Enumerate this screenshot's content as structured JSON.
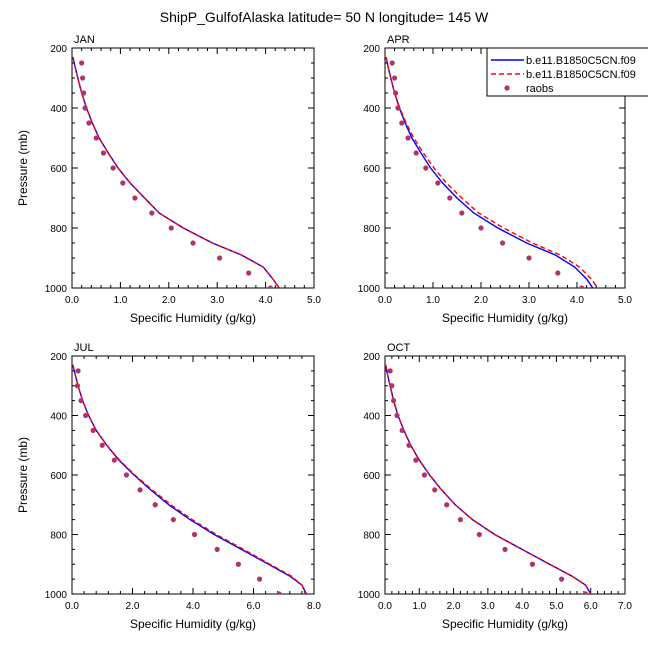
{
  "title": "ShipP_GulfofAlaska  latitude= 50 N longitude= 145 W",
  "legend": {
    "position": "top-right of APR panel",
    "entries": [
      {
        "label": "b.e11.B1850C5CN.f09",
        "color": "#0000ff",
        "style": "solid"
      },
      {
        "label": "b.e11.B1850C5CN.f09",
        "color": "#ff0000",
        "style": "dashed"
      },
      {
        "label": "raobs",
        "color": "#b0336a",
        "style": "marker"
      }
    ]
  },
  "chart_data": [
    {
      "type": "line",
      "panel": "JAN",
      "xlabel": "Specific Humidity (g/kg)",
      "ylabel": "Pressure (mb)",
      "xlim": [
        0,
        5
      ],
      "ylim": [
        1000,
        200
      ],
      "y_reversed": true,
      "xticks": [
        "0.0",
        "1.0",
        "2.0",
        "3.0",
        "4.0",
        "5.0"
      ],
      "yticks": [
        "200",
        "400",
        "600",
        "800",
        "1000"
      ],
      "series": [
        {
          "name": "b.e11.B1850C5CN.f09",
          "color": "#0000ff",
          "dash": false,
          "x": [
            0.02,
            0.06,
            0.12,
            0.2,
            0.3,
            0.42,
            0.56,
            0.75,
            0.95,
            1.2,
            1.5,
            1.8,
            2.3,
            2.9,
            3.5,
            3.95,
            4.15,
            4.28
          ],
          "y": [
            230,
            260,
            300,
            350,
            400,
            450,
            500,
            550,
            600,
            650,
            700,
            750,
            800,
            850,
            890,
            930,
            970,
            1000
          ]
        },
        {
          "name": "b.e11.B1850C5CN.f09",
          "color": "#ff0000",
          "dash": true,
          "x": [
            0.02,
            0.06,
            0.12,
            0.2,
            0.3,
            0.42,
            0.56,
            0.75,
            0.95,
            1.2,
            1.5,
            1.8,
            2.3,
            2.9,
            3.5,
            3.95,
            4.15,
            4.28
          ],
          "y": [
            230,
            260,
            300,
            350,
            400,
            450,
            500,
            550,
            600,
            650,
            700,
            750,
            800,
            850,
            890,
            930,
            970,
            1000
          ]
        },
        {
          "name": "raobs",
          "color": "#b0336a",
          "marker": true,
          "x": [
            0.2,
            0.22,
            0.24,
            0.27,
            0.35,
            0.5,
            0.65,
            0.85,
            1.05,
            1.3,
            1.65,
            2.05,
            2.5,
            3.05,
            3.65,
            4.1
          ],
          "y": [
            250,
            300,
            350,
            400,
            450,
            500,
            550,
            600,
            650,
            700,
            750,
            800,
            850,
            900,
            950,
            1000
          ]
        }
      ]
    },
    {
      "type": "line",
      "panel": "APR",
      "xlabel": "Specific Humidity (g/kg)",
      "ylabel": "",
      "xlim": [
        0,
        5
      ],
      "ylim": [
        1000,
        200
      ],
      "y_reversed": true,
      "xticks": [
        "0.0",
        "1.0",
        "2.0",
        "3.0",
        "4.0",
        "5.0"
      ],
      "yticks": [
        "200",
        "400",
        "600",
        "800",
        "1000"
      ],
      "series": [
        {
          "name": "b.e11.B1850C5CN.f09",
          "color": "#0000ff",
          "dash": false,
          "x": [
            0.02,
            0.06,
            0.12,
            0.2,
            0.3,
            0.42,
            0.56,
            0.75,
            0.95,
            1.2,
            1.5,
            1.85,
            2.35,
            2.95,
            3.55,
            3.95,
            4.2,
            4.33
          ],
          "y": [
            230,
            260,
            300,
            350,
            400,
            450,
            500,
            550,
            600,
            650,
            700,
            750,
            800,
            850,
            890,
            930,
            970,
            1000
          ]
        },
        {
          "name": "b.e11.B1850C5CN.f09",
          "color": "#ff0000",
          "dash": true,
          "x": [
            0.02,
            0.06,
            0.12,
            0.2,
            0.31,
            0.44,
            0.6,
            0.8,
            1.02,
            1.28,
            1.6,
            1.95,
            2.47,
            3.07,
            3.65,
            4.05,
            4.3,
            4.43
          ],
          "y": [
            230,
            260,
            300,
            350,
            400,
            450,
            500,
            550,
            600,
            650,
            700,
            750,
            800,
            850,
            890,
            930,
            970,
            1000
          ]
        },
        {
          "name": "raobs",
          "color": "#b0336a",
          "marker": true,
          "x": [
            0.15,
            0.2,
            0.22,
            0.27,
            0.35,
            0.48,
            0.65,
            0.85,
            1.1,
            1.35,
            1.6,
            2.0,
            2.45,
            3.0,
            3.6,
            4.1
          ],
          "y": [
            250,
            300,
            350,
            400,
            450,
            500,
            550,
            600,
            650,
            700,
            750,
            800,
            850,
            900,
            950,
            1000
          ]
        }
      ]
    },
    {
      "type": "line",
      "panel": "JUL",
      "xlabel": "Specific Humidity (g/kg)",
      "ylabel": "Pressure (mb)",
      "xlim": [
        0,
        8
      ],
      "ylim": [
        1000,
        200
      ],
      "y_reversed": true,
      "xticks": [
        "0.0",
        "2.0",
        "4.0",
        "6.0",
        "8.0"
      ],
      "yticks": [
        "200",
        "400",
        "600",
        "800",
        "1000"
      ],
      "series": [
        {
          "name": "b.e11.B1850C5CN.f09",
          "color": "#0000ff",
          "dash": false,
          "x": [
            0.03,
            0.1,
            0.2,
            0.35,
            0.55,
            0.8,
            1.15,
            1.55,
            2.05,
            2.6,
            3.2,
            3.9,
            4.7,
            5.6,
            6.5,
            7.2,
            7.6,
            7.75
          ],
          "y": [
            230,
            260,
            300,
            350,
            400,
            450,
            500,
            550,
            600,
            650,
            700,
            750,
            800,
            850,
            900,
            940,
            970,
            1000
          ]
        },
        {
          "name": "b.e11.B1850C5CN.f09",
          "color": "#ff0000",
          "dash": true,
          "x": [
            0.03,
            0.1,
            0.2,
            0.35,
            0.55,
            0.8,
            1.15,
            1.57,
            2.08,
            2.65,
            3.27,
            3.97,
            4.77,
            5.67,
            6.55,
            7.25,
            7.6,
            7.72
          ],
          "y": [
            230,
            260,
            300,
            350,
            400,
            450,
            500,
            550,
            600,
            650,
            700,
            750,
            800,
            850,
            900,
            940,
            970,
            1000
          ]
        },
        {
          "name": "raobs",
          "color": "#b0336a",
          "marker": true,
          "x": [
            0.2,
            0.18,
            0.3,
            0.45,
            0.7,
            1.0,
            1.4,
            1.8,
            2.25,
            2.75,
            3.35,
            4.05,
            4.8,
            5.5,
            6.2,
            6.85
          ],
          "y": [
            250,
            300,
            350,
            400,
            450,
            500,
            550,
            600,
            650,
            700,
            750,
            800,
            850,
            900,
            950,
            1000
          ]
        }
      ]
    },
    {
      "type": "line",
      "panel": "OCT",
      "xlabel": "Specific Humidity (g/kg)",
      "ylabel": "",
      "xlim": [
        0,
        7
      ],
      "ylim": [
        1000,
        200
      ],
      "y_reversed": true,
      "xticks": [
        "0.0",
        "1.0",
        "2.0",
        "3.0",
        "4.0",
        "5.0",
        "6.0",
        "7.0"
      ],
      "yticks": [
        "200",
        "400",
        "600",
        "800",
        "1000"
      ],
      "series": [
        {
          "name": "b.e11.B1850C5CN.f09",
          "color": "#0000ff",
          "dash": false,
          "x": [
            0.02,
            0.07,
            0.15,
            0.25,
            0.38,
            0.55,
            0.75,
            1.0,
            1.3,
            1.65,
            2.05,
            2.55,
            3.2,
            4.0,
            4.8,
            5.45,
            5.85,
            6.0
          ],
          "y": [
            230,
            260,
            300,
            350,
            400,
            450,
            500,
            550,
            600,
            650,
            700,
            750,
            800,
            850,
            900,
            940,
            970,
            1000
          ]
        },
        {
          "name": "b.e11.B1850C5CN.f09",
          "color": "#ff0000",
          "dash": true,
          "x": [
            0.02,
            0.07,
            0.15,
            0.25,
            0.38,
            0.55,
            0.75,
            1.0,
            1.3,
            1.65,
            2.05,
            2.55,
            3.2,
            4.0,
            4.8,
            5.45,
            5.85,
            6.0
          ],
          "y": [
            230,
            260,
            300,
            350,
            400,
            450,
            500,
            550,
            600,
            650,
            700,
            750,
            800,
            850,
            900,
            940,
            970,
            1000
          ]
        },
        {
          "name": "raobs",
          "color": "#b0336a",
          "marker": true,
          "x": [
            0.15,
            0.2,
            0.25,
            0.35,
            0.5,
            0.7,
            0.9,
            1.15,
            1.45,
            1.8,
            2.2,
            2.75,
            3.5,
            4.3,
            5.15,
            5.85
          ],
          "y": [
            250,
            300,
            350,
            400,
            450,
            500,
            550,
            600,
            650,
            700,
            750,
            800,
            850,
            900,
            950,
            1000
          ]
        }
      ]
    }
  ]
}
